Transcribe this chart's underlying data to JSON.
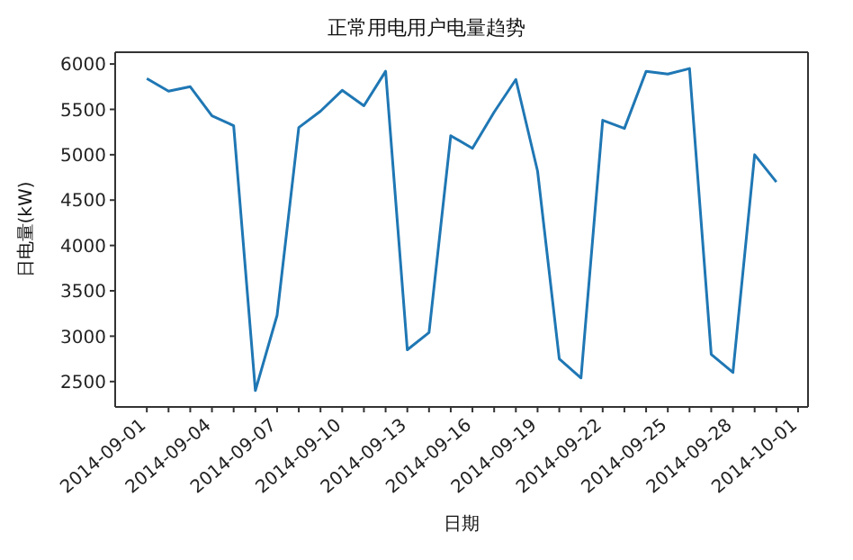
{
  "chart_data": {
    "type": "line",
    "title": "正常用电用户电量趋势",
    "xlabel": "日期",
    "ylabel": "日电量(kW)",
    "x": [
      "2014-09-01",
      "2014-09-02",
      "2014-09-03",
      "2014-09-04",
      "2014-09-05",
      "2014-09-06",
      "2014-09-07",
      "2014-09-08",
      "2014-09-09",
      "2014-09-10",
      "2014-09-11",
      "2014-09-12",
      "2014-09-13",
      "2014-09-14",
      "2014-09-15",
      "2014-09-16",
      "2014-09-17",
      "2014-09-18",
      "2014-09-19",
      "2014-09-20",
      "2014-09-21",
      "2014-09-22",
      "2014-09-23",
      "2014-09-24",
      "2014-09-25",
      "2014-09-26",
      "2014-09-27",
      "2014-09-28",
      "2014-09-29",
      "2014-09-30"
    ],
    "series": [
      {
        "color": "#1f77b4",
        "values": [
          5840,
          5700,
          5750,
          5430,
          5320,
          2400,
          3230,
          5300,
          5480,
          5710,
          5540,
          5920,
          2850,
          3040,
          5210,
          5070,
          5470,
          5830,
          4820,
          2750,
          2540,
          5380,
          5290,
          5920,
          5890,
          5950,
          2800,
          2600,
          5000,
          4700
        ]
      }
    ],
    "xlim": [
      "2014-08-30T13:00",
      "2014-10-01T11:00"
    ],
    "xticks": [
      "2014-09-01",
      {
        "value": "2014-09-02",
        "label": null
      },
      {
        "value": "2014-09-03",
        "label": null
      },
      "2014-09-04",
      {
        "value": "2014-09-05",
        "label": null
      },
      {
        "value": "2014-09-06",
        "label": null
      },
      "2014-09-07",
      {
        "value": "2014-09-08",
        "label": null
      },
      {
        "value": "2014-09-09",
        "label": null
      },
      "2014-09-10",
      {
        "value": "2014-09-11",
        "label": null
      },
      {
        "value": "2014-09-12",
        "label": null
      },
      "2014-09-13",
      {
        "value": "2014-09-14",
        "label": null
      },
      {
        "value": "2014-09-15",
        "label": null
      },
      "2014-09-16",
      {
        "value": "2014-09-17",
        "label": null
      },
      {
        "value": "2014-09-18",
        "label": null
      },
      "2014-09-19",
      {
        "value": "2014-09-20",
        "label": null
      },
      {
        "value": "2014-09-21",
        "label": null
      },
      "2014-09-22",
      {
        "value": "2014-09-23",
        "label": null
      },
      {
        "value": "2014-09-24",
        "label": null
      },
      "2014-09-25",
      {
        "value": "2014-09-26",
        "label": null
      },
      {
        "value": "2014-09-27",
        "label": null
      },
      "2014-09-28",
      {
        "value": "2014-09-29",
        "label": null
      },
      {
        "value": "2014-09-30",
        "label": null
      },
      "2014-10-01"
    ],
    "ylim": [
      2220,
      6130
    ],
    "yticks": [
      2500,
      3000,
      3500,
      4000,
      4500,
      5000,
      5500,
      6000
    ],
    "grid": false,
    "legend": false,
    "marker": "none",
    "line_style": "solid"
  }
}
